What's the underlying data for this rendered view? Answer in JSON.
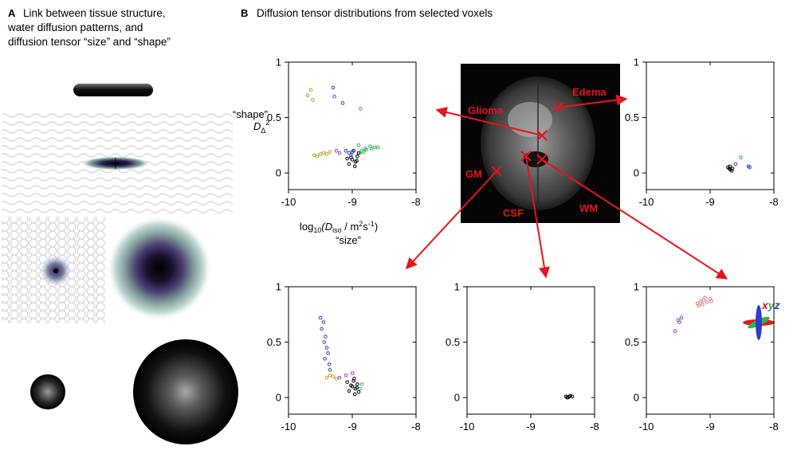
{
  "panel_a": {
    "letter": "A",
    "title_lines": [
      "Link between tissue structure,",
      "water diffusion patterns, and",
      "diffusion tensor “size” and “shape”"
    ]
  },
  "panel_b": {
    "letter": "B",
    "title": "Diffusion tensor distributions from selected voxels"
  },
  "brain_labels": {
    "glioma": "Glioma",
    "edema": "Edema",
    "gm": "GM",
    "csf": "CSF",
    "wm": "WM"
  },
  "axis_text": {
    "ylabel_line1": "“shape”",
    "ylabel_main": "D",
    "ylabel_sub": "Δ",
    "ylabel_sup": "2",
    "xlabel_pre": "log",
    "xlabel_sub10": "10",
    "xlabel_d": "(D",
    "xlabel_iso": "iso",
    "xlabel_unit": " / m",
    "xlabel_sup2": "2",
    "xlabel_s": "s",
    "xlabel_supm1": "-1",
    "xlabel_close": ")",
    "xlabel_line2": "“size”"
  },
  "legend_xyz": {
    "x": "x",
    "y": "y",
    "z": "z"
  },
  "colors": {
    "red": "#e8131b",
    "green": "#2fb34a",
    "blue": "#2e3cc9",
    "purple": "#8a3fc2",
    "olive": "#b8a02a",
    "pink": "#e07a7a",
    "black": "#000000"
  },
  "chart_data": [
    {
      "id": "glioma",
      "type": "scatter",
      "xlim": [
        -10,
        -8
      ],
      "ylim": [
        -0.15,
        1.0
      ],
      "xticks": [
        "-10",
        "-9",
        "-8"
      ],
      "yticks": [
        "0",
        "0.5",
        "1"
      ],
      "series": [
        {
          "color": "#000000",
          "points": [
            [
              -9.0,
              0.12
            ],
            [
              -8.95,
              0.1
            ],
            [
              -8.92,
              0.15
            ],
            [
              -9.05,
              0.08
            ],
            [
              -8.98,
              0.2
            ],
            [
              -8.9,
              0.18
            ],
            [
              -9.02,
              0.14
            ],
            [
              -8.96,
              0.06
            ],
            [
              -8.93,
              0.11
            ],
            [
              -9.08,
              0.13
            ]
          ]
        },
        {
          "color": "#2fb34a",
          "points": [
            [
              -8.85,
              0.2
            ],
            [
              -8.8,
              0.22
            ],
            [
              -8.72,
              0.24
            ],
            [
              -8.65,
              0.23
            ],
            [
              -8.88,
              0.18
            ],
            [
              -8.78,
              0.21
            ],
            [
              -8.7,
              0.22
            ],
            [
              -8.82,
              0.19
            ],
            [
              -8.9,
              0.25
            ],
            [
              -8.6,
              0.23
            ],
            [
              -8.87,
              0.58
            ]
          ]
        },
        {
          "color": "#2e3cc9",
          "points": [
            [
              -9.05,
              0.18
            ],
            [
              -9.1,
              0.2
            ],
            [
              -9.02,
              0.16
            ],
            [
              -9.0,
              0.19
            ],
            [
              -9.15,
              0.63
            ],
            [
              -9.3,
              0.77
            ]
          ]
        },
        {
          "color": "#b8a02a",
          "points": [
            [
              -9.6,
              0.16
            ],
            [
              -9.5,
              0.17
            ],
            [
              -9.45,
              0.18
            ],
            [
              -9.4,
              0.17
            ],
            [
              -9.35,
              0.19
            ],
            [
              -9.55,
              0.15
            ],
            [
              -9.7,
              0.7
            ],
            [
              -9.65,
              0.75
            ],
            [
              -9.62,
              0.66
            ]
          ]
        },
        {
          "color": "#8a3fc2",
          "points": [
            [
              -9.25,
              0.2
            ],
            [
              -9.2,
              0.18
            ],
            [
              -9.28,
              0.69
            ]
          ]
        }
      ]
    },
    {
      "id": "edema",
      "type": "scatter",
      "xlim": [
        -10,
        -8
      ],
      "ylim": [
        -0.15,
        1.0
      ],
      "xticks": [
        "-10",
        "-9",
        "-8"
      ],
      "yticks": [
        "0",
        "0.5",
        "1"
      ],
      "series": [
        {
          "color": "#000000",
          "points": [
            [
              -8.7,
              0.04
            ],
            [
              -8.68,
              0.03
            ],
            [
              -8.72,
              0.05
            ],
            [
              -8.66,
              0.02
            ],
            [
              -8.69,
              0.06
            ],
            [
              -8.65,
              0.04
            ]
          ]
        },
        {
          "color": "#2e3cc9",
          "points": [
            [
              -8.4,
              0.06
            ],
            [
              -8.38,
              0.05
            ]
          ]
        },
        {
          "color": "#e8131b",
          "points": [
            [
              -8.6,
              0.08
            ]
          ]
        },
        {
          "color": "#2fb34a",
          "points": [
            [
              -8.52,
              0.14
            ]
          ]
        }
      ]
    },
    {
      "id": "gm",
      "type": "scatter",
      "xlim": [
        -10,
        -8
      ],
      "ylim": [
        -0.15,
        1.0
      ],
      "xticks": [
        "-10",
        "-9",
        "-8"
      ],
      "yticks": [
        "0",
        "0.5",
        "1"
      ],
      "series": [
        {
          "color": "#000000",
          "points": [
            [
              -9.0,
              0.1
            ],
            [
              -8.95,
              0.08
            ],
            [
              -8.92,
              0.12
            ],
            [
              -9.05,
              0.06
            ],
            [
              -8.98,
              0.15
            ],
            [
              -8.9,
              0.05
            ],
            [
              -9.02,
              0.11
            ],
            [
              -8.96,
              0.03
            ],
            [
              -8.93,
              0.09
            ],
            [
              -9.08,
              0.14
            ],
            [
              -8.97,
              0.17
            ]
          ]
        },
        {
          "color": "#2e3cc9",
          "points": [
            [
              -9.5,
              0.72
            ],
            [
              -9.45,
              0.68
            ],
            [
              -9.48,
              0.62
            ],
            [
              -9.42,
              0.55
            ],
            [
              -9.44,
              0.5
            ],
            [
              -9.4,
              0.45
            ],
            [
              -9.38,
              0.4
            ],
            [
              -9.43,
              0.35
            ],
            [
              -9.36,
              0.3
            ],
            [
              -9.35,
              0.25
            ]
          ]
        },
        {
          "color": "#b8a02a",
          "points": [
            [
              -9.4,
              0.18
            ],
            [
              -9.3,
              0.19
            ],
            [
              -9.25,
              0.17
            ],
            [
              -9.35,
              0.2
            ]
          ]
        },
        {
          "color": "#8a3fc2",
          "points": [
            [
              -9.1,
              0.2
            ],
            [
              -9.0,
              0.22
            ],
            [
              -9.2,
              0.18
            ]
          ]
        },
        {
          "color": "#2fb34a",
          "points": [
            [
              -8.85,
              0.12
            ],
            [
              -8.88,
              0.08
            ]
          ]
        }
      ]
    },
    {
      "id": "csf",
      "type": "scatter",
      "xlim": [
        -10,
        -8
      ],
      "ylim": [
        -0.15,
        1.0
      ],
      "xticks": [
        "-10",
        "-9",
        "-8"
      ],
      "yticks": [
        "0",
        "0.5",
        "1"
      ],
      "series": [
        {
          "color": "#000000",
          "points": [
            [
              -8.45,
              0.01
            ],
            [
              -8.42,
              0.0
            ],
            [
              -8.4,
              0.01
            ],
            [
              -8.38,
              0.015
            ],
            [
              -8.35,
              0.01
            ],
            [
              -8.43,
              0.0
            ]
          ]
        }
      ]
    },
    {
      "id": "wm",
      "type": "scatter",
      "xlim": [
        -10,
        -8
      ],
      "ylim": [
        -0.15,
        1.0
      ],
      "xticks": [
        "-10",
        "-9",
        "-8"
      ],
      "yticks": [
        "0",
        "0.5",
        "1"
      ],
      "series": [
        {
          "color": "#e07a7a",
          "points": [
            [
              -9.2,
              0.85
            ],
            [
              -9.15,
              0.87
            ],
            [
              -9.1,
              0.88
            ],
            [
              -9.05,
              0.86
            ],
            [
              -9.0,
              0.89
            ],
            [
              -9.12,
              0.84
            ],
            [
              -9.08,
              0.9
            ],
            [
              -8.98,
              0.87
            ],
            [
              -9.18,
              0.83
            ]
          ]
        },
        {
          "color": "#8a3fc2",
          "points": [
            [
              -9.5,
              0.7
            ],
            [
              -9.45,
              0.72
            ],
            [
              -9.55,
              0.6
            ],
            [
              -9.48,
              0.68
            ]
          ]
        }
      ]
    }
  ]
}
